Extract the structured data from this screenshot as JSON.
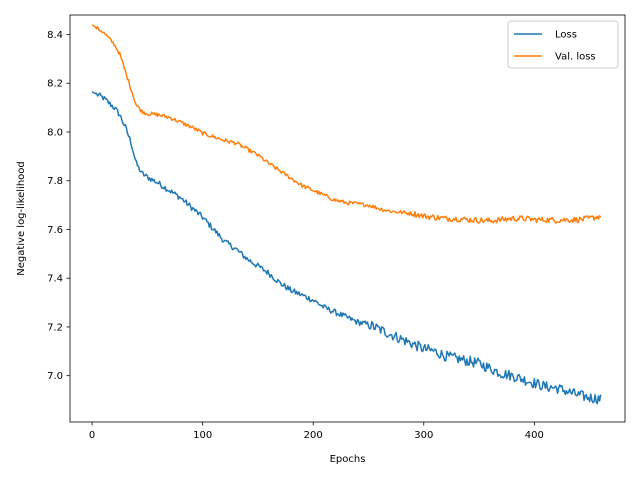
{
  "chart_data": {
    "type": "line",
    "title": "",
    "xlabel": "Epochs",
    "ylabel": "Negative log-likelihood",
    "xlim": [
      -20,
      482
    ],
    "ylim": [
      6.81,
      8.48
    ],
    "xticks": [
      0,
      100,
      200,
      300,
      400
    ],
    "yticks": [
      7.0,
      7.2,
      7.4,
      7.6,
      7.8,
      8.0,
      8.2,
      8.4
    ],
    "grid": false,
    "legend": "top-right",
    "series": [
      {
        "name": "Loss",
        "color": "#1f77b4",
        "points": [
          [
            0,
            8.165
          ],
          [
            10,
            8.14
          ],
          [
            20,
            8.1
          ],
          [
            25,
            8.07
          ],
          [
            30,
            8.02
          ],
          [
            35,
            7.96
          ],
          [
            40,
            7.87
          ],
          [
            45,
            7.83
          ],
          [
            50,
            7.815
          ],
          [
            60,
            7.79
          ],
          [
            70,
            7.76
          ],
          [
            80,
            7.73
          ],
          [
            90,
            7.69
          ],
          [
            100,
            7.65
          ],
          [
            110,
            7.6
          ],
          [
            120,
            7.55
          ],
          [
            130,
            7.52
          ],
          [
            140,
            7.48
          ],
          [
            150,
            7.45
          ],
          [
            160,
            7.42
          ],
          [
            170,
            7.38
          ],
          [
            180,
            7.35
          ],
          [
            190,
            7.33
          ],
          [
            200,
            7.31
          ],
          [
            210,
            7.28
          ],
          [
            220,
            7.26
          ],
          [
            230,
            7.24
          ],
          [
            240,
            7.22
          ],
          [
            250,
            7.21
          ],
          [
            260,
            7.19
          ],
          [
            270,
            7.17
          ],
          [
            280,
            7.15
          ],
          [
            290,
            7.13
          ],
          [
            300,
            7.11
          ],
          [
            310,
            7.1
          ],
          [
            320,
            7.08
          ],
          [
            330,
            7.07
          ],
          [
            340,
            7.06
          ],
          [
            350,
            7.05
          ],
          [
            360,
            7.03
          ],
          [
            370,
            7.01
          ],
          [
            380,
            7.0
          ],
          [
            390,
            6.985
          ],
          [
            400,
            6.97
          ],
          [
            410,
            6.955
          ],
          [
            420,
            6.95
          ],
          [
            430,
            6.935
          ],
          [
            440,
            6.92
          ],
          [
            450,
            6.91
          ],
          [
            460,
            6.905
          ]
        ]
      },
      {
        "name": "Val. loss",
        "color": "#ff7f0e",
        "points": [
          [
            0,
            8.44
          ],
          [
            10,
            8.41
          ],
          [
            20,
            8.36
          ],
          [
            25,
            8.32
          ],
          [
            30,
            8.25
          ],
          [
            35,
            8.18
          ],
          [
            40,
            8.11
          ],
          [
            45,
            8.085
          ],
          [
            50,
            8.075
          ],
          [
            60,
            8.07
          ],
          [
            70,
            8.06
          ],
          [
            80,
            8.04
          ],
          [
            90,
            8.02
          ],
          [
            100,
            7.995
          ],
          [
            110,
            7.98
          ],
          [
            120,
            7.965
          ],
          [
            130,
            7.955
          ],
          [
            140,
            7.93
          ],
          [
            150,
            7.905
          ],
          [
            160,
            7.87
          ],
          [
            170,
            7.84
          ],
          [
            180,
            7.81
          ],
          [
            190,
            7.78
          ],
          [
            200,
            7.76
          ],
          [
            210,
            7.74
          ],
          [
            220,
            7.72
          ],
          [
            230,
            7.71
          ],
          [
            240,
            7.705
          ],
          [
            250,
            7.7
          ],
          [
            260,
            7.685
          ],
          [
            270,
            7.675
          ],
          [
            280,
            7.67
          ],
          [
            290,
            7.665
          ],
          [
            300,
            7.655
          ],
          [
            310,
            7.65
          ],
          [
            320,
            7.645
          ],
          [
            330,
            7.645
          ],
          [
            340,
            7.64
          ],
          [
            350,
            7.638
          ],
          [
            360,
            7.635
          ],
          [
            370,
            7.64
          ],
          [
            380,
            7.645
          ],
          [
            390,
            7.645
          ],
          [
            400,
            7.64
          ],
          [
            410,
            7.64
          ],
          [
            420,
            7.638
          ],
          [
            430,
            7.64
          ],
          [
            440,
            7.64
          ],
          [
            450,
            7.645
          ],
          [
            460,
            7.655
          ]
        ]
      }
    ]
  }
}
